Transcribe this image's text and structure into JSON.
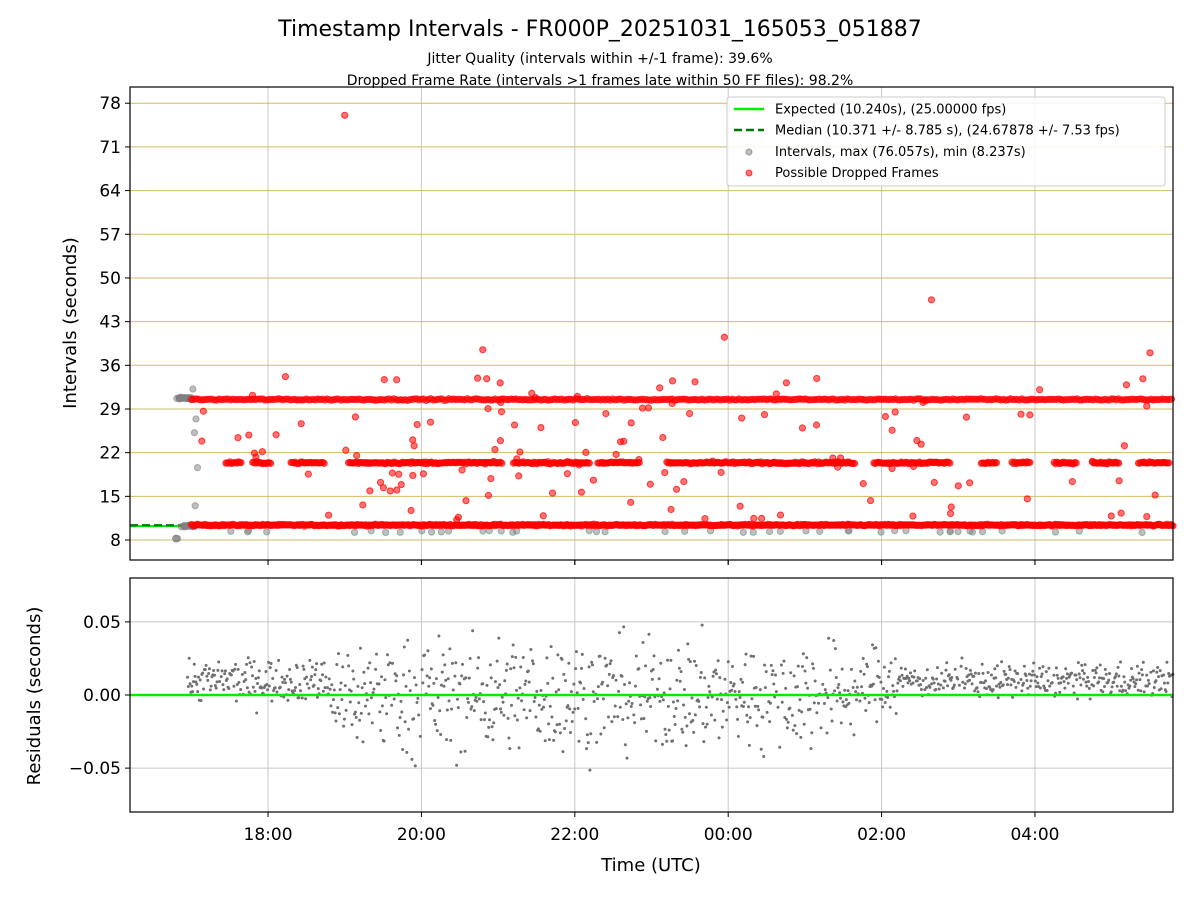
{
  "chart_data": [
    {
      "type": "scatter",
      "title": "Timestamp Intervals - FR000P_20251031_165053_051887",
      "subtitle_lines": [
        "Jitter Quality (intervals within +/-1 frame): 39.6%",
        "Dropped Frame Rate (intervals >1 frames late within 50 FF files): 98.2%"
      ],
      "xlabel": "",
      "ylabel": "Intervals (seconds)",
      "xlim_hours": [
        16.2,
        29.8
      ],
      "ylim": [
        4.8,
        80.6
      ],
      "yticks": [
        8,
        15,
        22,
        29,
        36,
        43,
        50,
        57,
        64,
        71,
        78
      ],
      "ytick_labels": [
        "8",
        "15",
        "22",
        "29",
        "36",
        "43",
        "50",
        "57",
        "64",
        "71",
        "78"
      ],
      "xticks_hours": [
        18,
        20,
        22,
        24,
        26,
        28
      ],
      "grid": "on",
      "legend_position": "top-right",
      "legend": [
        "Expected (10.240s), (25.00000 fps)",
        "Median (10.371 +/- 8.785 s), (24.67878 +/- 7.53 fps)",
        "Intervals, max (76.057s), min (8.237s)",
        "Possible Dropped Frames"
      ],
      "expected_interval": 10.24,
      "median_interval": 10.371,
      "max_interval": 76.057,
      "min_interval": 8.237,
      "interval_levels": [
        10.24,
        20.48,
        30.72
      ],
      "startup_segment_end_hour": 17.0,
      "series_colors": {
        "expected": "#00ee00",
        "median": "#007700",
        "intervals": "#808080",
        "dropped": "#ff0000",
        "gridline": "#d2b96a"
      },
      "notable_points": [
        {
          "hour": 19.0,
          "value": 76.057
        },
        {
          "hour": 26.65,
          "value": 46.5
        },
        {
          "hour": 23.95,
          "value": 40.5
        },
        {
          "hour": 20.8,
          "value": 38.5
        },
        {
          "hour": 29.5,
          "value": 38.0
        },
        {
          "hour": 16.8,
          "value": 8.237
        }
      ]
    },
    {
      "type": "scatter",
      "title": "",
      "xlabel": "Time (UTC)",
      "ylabel": "Residuals (seconds)",
      "xlim_hours": [
        16.2,
        29.8
      ],
      "ylim": [
        -0.08,
        0.08
      ],
      "yticks": [
        0.05,
        0.0,
        -0.05
      ],
      "ytick_labels": [
        "0.05",
        "0.00",
        "−0.05"
      ],
      "xticks_hours": [
        18,
        20,
        22,
        24,
        26,
        28
      ],
      "xtick_labels": [
        "18:00",
        "20:00",
        "22:00",
        "00:00",
        "02:00",
        "04:00"
      ],
      "zero_line_value": 0.0,
      "grid": "on",
      "series_colors": {
        "zero_line": "#00ee00",
        "residuals": "#707070"
      }
    }
  ]
}
